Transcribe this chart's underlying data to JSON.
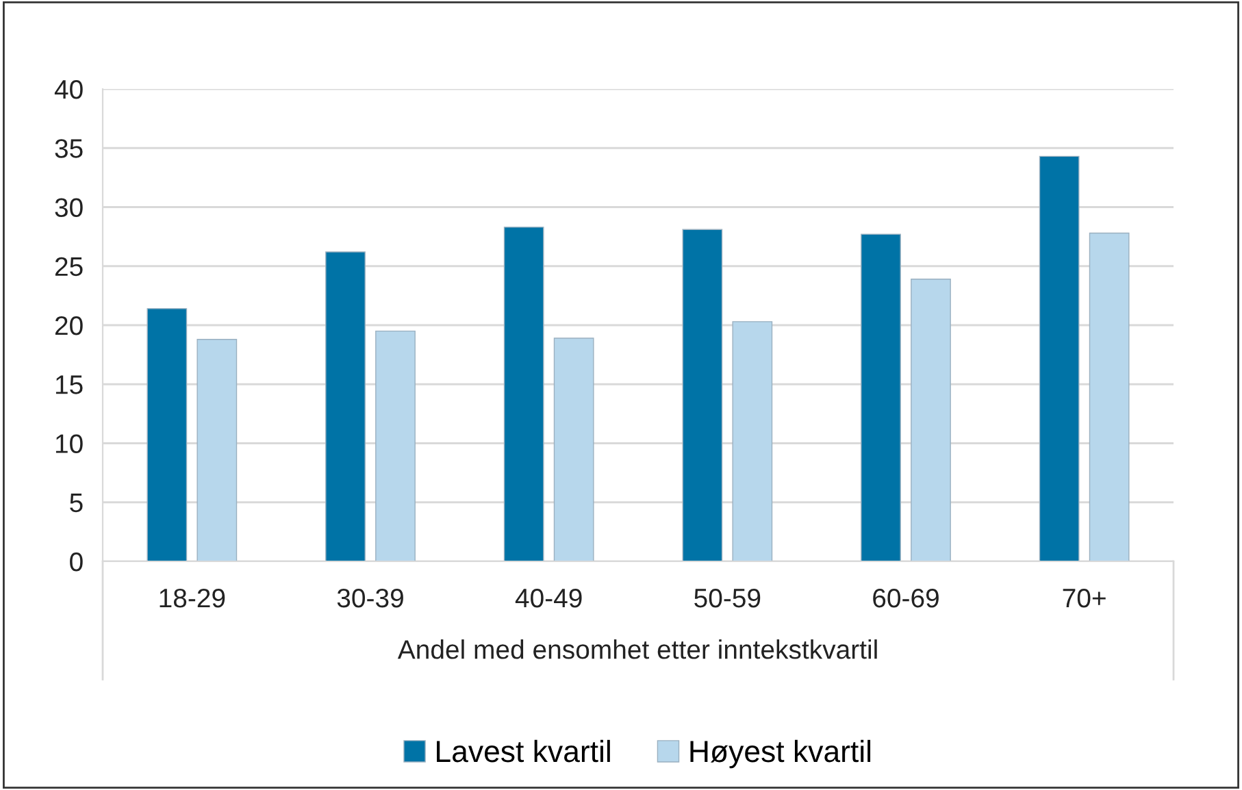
{
  "chart_data": {
    "type": "bar",
    "xlabel": "Andel med ensomhet etter inntekstkvartil",
    "categories": [
      "18-29",
      "30-39",
      "40-49",
      "50-59",
      "60-69",
      "70+"
    ],
    "series": [
      {
        "name": "Lavest kvartil",
        "color": "#0073a6",
        "values": [
          21.4,
          26.2,
          28.3,
          28.1,
          27.7,
          34.3
        ]
      },
      {
        "name": "Høyest kvartil",
        "color": "#b7d7ec",
        "values": [
          18.8,
          19.5,
          18.9,
          20.3,
          23.9,
          27.8
        ]
      }
    ],
    "ylim": [
      0,
      40
    ],
    "yticks": [
      0,
      5,
      10,
      15,
      20,
      25,
      30,
      35,
      40
    ],
    "grid": "y",
    "legend": "bottom"
  }
}
